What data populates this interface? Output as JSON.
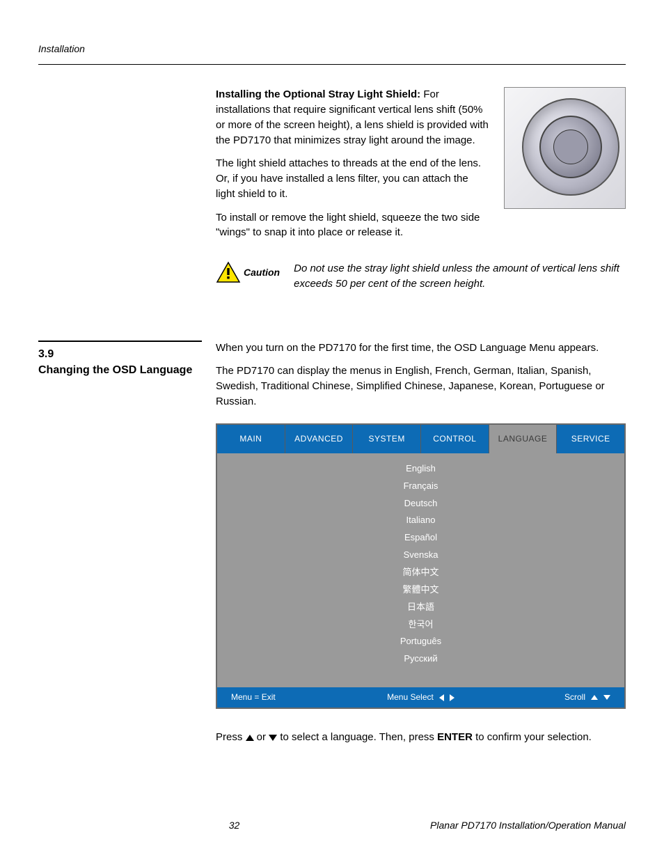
{
  "header": {
    "section_label": "Installation"
  },
  "shield": {
    "heading": "Installing the Optional Stray Light Shield:",
    "p1_rest": " For installations that require significant vertical lens shift (50% or more of the screen height), a lens shield is provided with the PD7170 that minimizes stray light around the image.",
    "p2": "The light shield attaches to threads at the end of the lens. Or, if you have installed a lens filter, you can attach the light shield to it.",
    "p3": "To install or remove the light shield, squeeze the two side \"wings\" to snap it into place or release it."
  },
  "caution": {
    "label": "Caution",
    "body": "Do not use the stray light shield unless the amount of vertical lens shift exceeds 50 per cent of the screen height."
  },
  "section": {
    "number": "3.9",
    "title": "Changing the OSD Language",
    "p1": "When you turn on the PD7170 for the first time, the OSD Language Menu appears.",
    "p2": "The PD7170 can display the menus in English, French, German, Italian, Spanish, Swedish, Traditional Chinese, Simplified Chinese, Japanese, Korean, Portuguese or Russian."
  },
  "osd": {
    "tabs": [
      "MAIN",
      "ADVANCED",
      "SYSTEM",
      "CONTROL",
      "LANGUAGE",
      "SERVICE"
    ],
    "active_tab_index": 4,
    "items": [
      "English",
      "Français",
      "Deutsch",
      "Italiano",
      "Español",
      "Svenska",
      "简体中文",
      "繁體中文",
      "日本語",
      "한국어",
      "Português",
      "Русский"
    ],
    "footer": {
      "exit": "Menu = Exit",
      "select": "Menu Select",
      "scroll": "Scroll"
    },
    "colors": {
      "tab_bg": "#0d6bb5",
      "body_bg": "#9a9a9a",
      "text": "#ffffff"
    }
  },
  "instruction": {
    "pre": "Press ",
    "mid": " or ",
    "post": " to select a language. Then, press ",
    "enter": "ENTER",
    "end": " to confirm your selection."
  },
  "footer": {
    "page": "32",
    "doc": "Planar PD7170 Installation/Operation Manual"
  }
}
